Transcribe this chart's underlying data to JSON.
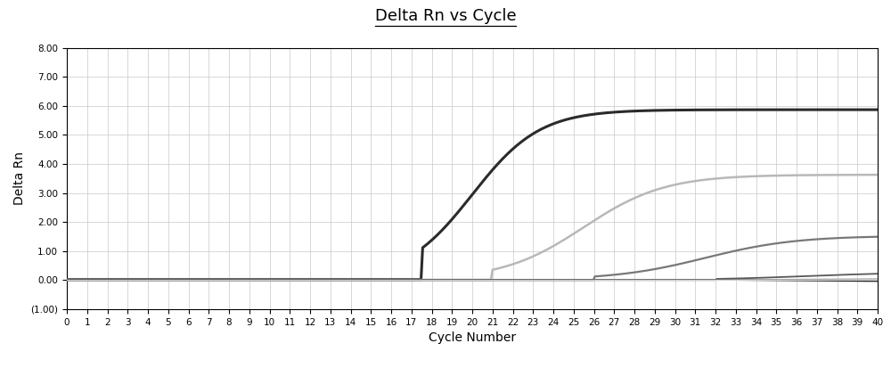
{
  "title": "Delta Rn vs Cycle",
  "xlabel": "Cycle Number",
  "ylabel": "Delta Rn",
  "xlim": [
    0,
    40
  ],
  "ylim": [
    -1.0,
    8.0
  ],
  "ytick_vals": [
    -1.0,
    0.0,
    1.0,
    2.0,
    3.0,
    4.0,
    5.0,
    6.0,
    7.0,
    8.0
  ],
  "ytick_labels": [
    "(1.00)",
    "0.00",
    "1.00",
    "2.00",
    "3.00",
    "4.00",
    "5.00",
    "6.00",
    "7.00",
    "8.00"
  ],
  "xticks": [
    0,
    1,
    2,
    3,
    4,
    5,
    6,
    7,
    8,
    9,
    10,
    11,
    12,
    13,
    14,
    15,
    16,
    17,
    18,
    19,
    20,
    21,
    22,
    23,
    24,
    25,
    26,
    27,
    28,
    29,
    30,
    31,
    32,
    33,
    34,
    35,
    36,
    37,
    38,
    39,
    40
  ],
  "bg_color": "#ffffff",
  "grid_color": "#c8c8c8",
  "curve_colors": [
    "#2b2b2b",
    "#b8b8b8",
    "#787878",
    "#585858",
    "#a0a0a0",
    "#181818",
    "#d0d0d0"
  ],
  "curve_lws": [
    2.2,
    1.8,
    1.6,
    1.3,
    0.9,
    0.9,
    0.8
  ]
}
